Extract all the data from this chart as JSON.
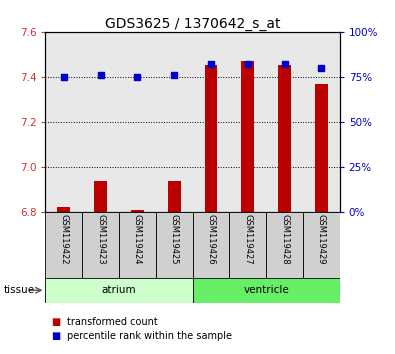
{
  "title": "GDS3625 / 1370642_s_at",
  "samples": [
    "GSM119422",
    "GSM119423",
    "GSM119424",
    "GSM119425",
    "GSM119426",
    "GSM119427",
    "GSM119428",
    "GSM119429"
  ],
  "transformed_count": [
    6.825,
    6.94,
    6.81,
    6.94,
    7.455,
    7.47,
    7.455,
    7.37
  ],
  "percentile_rank": [
    75,
    76,
    75,
    76,
    82,
    82,
    82,
    80
  ],
  "ylim_left": [
    6.8,
    7.6
  ],
  "ylim_right": [
    0,
    100
  ],
  "yticks_left": [
    6.8,
    7.0,
    7.2,
    7.4,
    7.6
  ],
  "yticks_right": [
    0,
    25,
    50,
    75,
    100
  ],
  "ytick_labels_right": [
    "0%",
    "25%",
    "50%",
    "75%",
    "100%"
  ],
  "groups": [
    {
      "label": "atrium",
      "indices": [
        0,
        1,
        2,
        3
      ],
      "color": "#ccffcc"
    },
    {
      "label": "ventricle",
      "indices": [
        4,
        5,
        6,
        7
      ],
      "color": "#66ee66"
    }
  ],
  "bar_color": "#bb0000",
  "dot_color": "#0000cc",
  "bar_bottom": 6.8,
  "bg_color": "#ffffff",
  "plot_bg": "#e8e8e8",
  "sample_box_color": "#d0d0d0",
  "tissue_label": "tissue",
  "legend_items": [
    {
      "label": "transformed count",
      "color": "#bb0000"
    },
    {
      "label": "percentile rank within the sample",
      "color": "#0000cc"
    }
  ],
  "title_fontsize": 10,
  "tick_fontsize": 7.5,
  "label_fontsize": 7.5,
  "bar_width": 0.35
}
